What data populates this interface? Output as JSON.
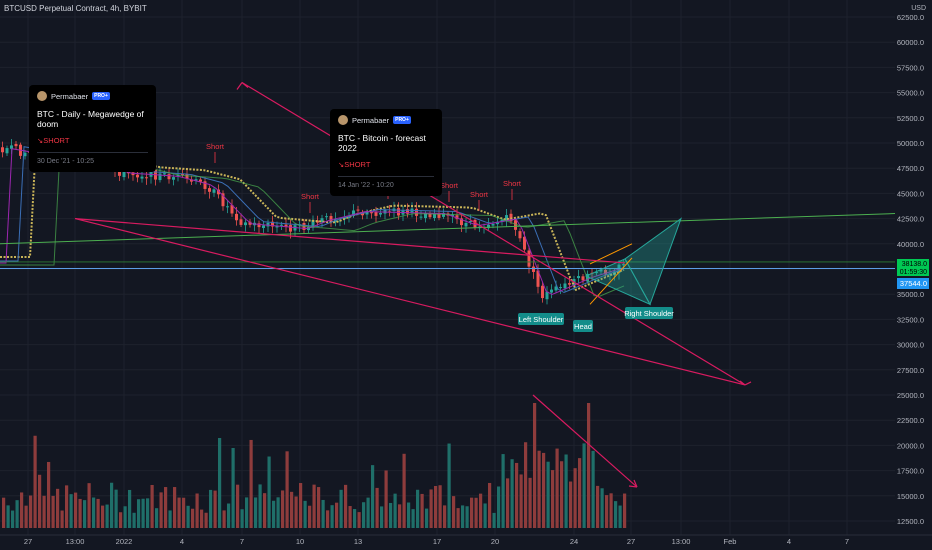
{
  "header": {
    "title": "BTCUSD Perpetual Contract, 4h, BYBIT",
    "currency": "USD"
  },
  "ideas": [
    {
      "author": "Permabaer",
      "badge": "PRO+",
      "title": "BTC - Daily - Megawedge of doom",
      "signal": "↘SHORT",
      "timestamp": "30 Dec '21 - 10:25"
    },
    {
      "author": "Permabaer",
      "badge": "PRO+",
      "title": "BTC - Bitcoin - forecast 2022",
      "signal": "↘SHORT",
      "timestamp": "14 Jan '22 - 10:20"
    }
  ],
  "colors": {
    "background": "#131722",
    "up": "#26a69a",
    "down": "#ef5350",
    "projection": "#d81b60",
    "label_bg": "#138d8a",
    "blue_line": "#5c9de6",
    "green_line": "#4caf50"
  },
  "chart_data": {
    "type": "candlestick",
    "title": "BTCUSD Perpetual Contract, 4h, BYBIT",
    "y_axis": {
      "min": 12500,
      "max": 62500,
      "ticks": [
        62500,
        60000,
        57500,
        55000,
        52500,
        50000,
        47500,
        45000,
        42500,
        40000,
        37500,
        35000,
        32500,
        30000,
        27500,
        25000,
        22500,
        20000,
        17500,
        15000,
        12500
      ]
    },
    "x_axis_labels": [
      "27",
      "13:00",
      "2022",
      "4",
      "7",
      "10",
      "13",
      "17",
      "20",
      "24",
      "27",
      "13:00",
      "Feb",
      "4",
      "7"
    ],
    "price_labels": {
      "current_a": "38138.0",
      "current_b": "01:59:30",
      "line": "37544.0"
    },
    "annotations": [
      "Short",
      "Short",
      "Short",
      "Short",
      "Short",
      "Short",
      "Left Shoulder",
      "Head",
      "Right Shoulder"
    ],
    "close_path": [
      [
        "27",
        49500
      ],
      [
        "13:00",
        48200
      ],
      [
        "2022",
        47000
      ],
      [
        "4",
        46700
      ],
      [
        "4",
        45800
      ],
      [
        "7",
        42000
      ],
      [
        "10",
        41500
      ],
      [
        "10",
        42300
      ],
      [
        "13",
        43200
      ],
      [
        "17",
        43000
      ],
      [
        "20",
        41800
      ],
      [
        "20",
        42500
      ],
      [
        "24",
        34800
      ],
      [
        "24",
        36700
      ],
      [
        "27",
        38100
      ]
    ],
    "projection_path": [
      [
        "27",
        38100
      ],
      [
        "13:00",
        42500
      ],
      [
        "Feb",
        26000
      ],
      [
        "7",
        56000
      ]
    ],
    "harmonic_pattern": [
      [
        "24",
        36800
      ],
      [
        "27",
        38500
      ],
      [
        "27",
        34000
      ],
      [
        "13:00",
        42500
      ]
    ],
    "trendlines": {
      "green_from": 40000,
      "green_to": 43000,
      "blue_level": 37544,
      "green_level": 38200
    },
    "volume": {
      "unit": "relative",
      "max": 100,
      "peaks": [
        [
          "Feb",
          0
        ],
        [
          "24",
          100
        ]
      ]
    }
  }
}
